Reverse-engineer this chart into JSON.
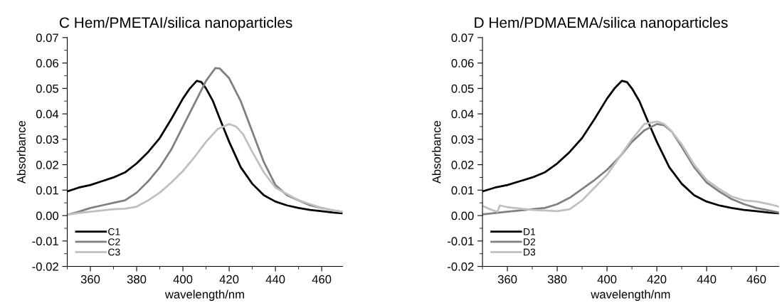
{
  "chart_data": [
    {
      "type": "line",
      "title": "C Hem/PMETAI/silica nanoparticles",
      "xlabel": "wavelength/nm",
      "ylabel": "Absorbance",
      "xlim": [
        350,
        469
      ],
      "xticks": [
        360,
        380,
        400,
        420,
        440,
        460
      ],
      "ylim": [
        -0.02,
        0.07
      ],
      "yticks": [
        {
          "value": -0.02,
          "label": "-0.02"
        },
        {
          "value": -0.01,
          "label": "-0.01"
        },
        {
          "value": 0,
          "label": "0.00"
        },
        {
          "value": 0.01,
          "label": "0.01"
        },
        {
          "value": 0.02,
          "label": "0.02"
        },
        {
          "value": 0.03,
          "label": "0.03"
        },
        {
          "value": 0.04,
          "label": "0.04"
        },
        {
          "value": 0.05,
          "label": "0.05"
        },
        {
          "value": 0.06,
          "label": "0.06"
        },
        {
          "value": 0.07,
          "label": "0.07"
        }
      ],
      "legend": "bottom left",
      "grid": false,
      "series": [
        {
          "name": "C1",
          "color": "#000000",
          "x": [
            350,
            355,
            360,
            365,
            370,
            375,
            380,
            385,
            390,
            395,
            400,
            403,
            406,
            408,
            410,
            413,
            416,
            420,
            425,
            430,
            435,
            440,
            445,
            450,
            455,
            460,
            465,
            469
          ],
          "values": [
            0.0095,
            0.011,
            0.012,
            0.0135,
            0.015,
            0.017,
            0.0205,
            0.025,
            0.0305,
            0.038,
            0.046,
            0.05,
            0.053,
            0.0525,
            0.05,
            0.045,
            0.038,
            0.029,
            0.019,
            0.0125,
            0.008,
            0.0055,
            0.004,
            0.003,
            0.0022,
            0.0017,
            0.0012,
            0.0009
          ]
        },
        {
          "name": "C2",
          "color": "#808080",
          "x": [
            350,
            355,
            360,
            365,
            370,
            375,
            380,
            385,
            390,
            395,
            400,
            405,
            410,
            414,
            416,
            420,
            425,
            430,
            435,
            440,
            445,
            450,
            455,
            460,
            465,
            469
          ],
          "values": [
            0.0003,
            0.0015,
            0.003,
            0.004,
            0.005,
            0.006,
            0.009,
            0.0135,
            0.019,
            0.026,
            0.035,
            0.044,
            0.053,
            0.058,
            0.0578,
            0.054,
            0.045,
            0.033,
            0.021,
            0.012,
            0.008,
            0.006,
            0.004,
            0.003,
            0.002,
            0.0015
          ]
        },
        {
          "name": "C3",
          "color": "#c0c0c0",
          "x": [
            350,
            355,
            360,
            365,
            370,
            375,
            380,
            385,
            390,
            395,
            400,
            405,
            410,
            415,
            420,
            423,
            426,
            430,
            435,
            440,
            445,
            450,
            455,
            460,
            465,
            469
          ],
          "values": [
            0.0003,
            0.001,
            0.0015,
            0.002,
            0.0025,
            0.0027,
            0.0035,
            0.006,
            0.009,
            0.013,
            0.0175,
            0.023,
            0.029,
            0.034,
            0.036,
            0.035,
            0.032,
            0.025,
            0.017,
            0.011,
            0.0085,
            0.006,
            0.0045,
            0.003,
            0.002,
            0.0015
          ]
        }
      ]
    },
    {
      "type": "line",
      "title": "D Hem/PDMAEMA/silica nanoparticles",
      "xlabel": "wavelength/nm",
      "ylabel": "Absorbance",
      "xlim": [
        350,
        469
      ],
      "xticks": [
        360,
        380,
        400,
        420,
        440,
        460
      ],
      "ylim": [
        -0.02,
        0.07
      ],
      "yticks": [
        {
          "value": -0.02,
          "label": "-0.02"
        },
        {
          "value": -0.01,
          "label": "-0.01"
        },
        {
          "value": 0,
          "label": "0.00"
        },
        {
          "value": 0.01,
          "label": "0.01"
        },
        {
          "value": 0.02,
          "label": "0.02"
        },
        {
          "value": 0.03,
          "label": "0.03"
        },
        {
          "value": 0.04,
          "label": "0.04"
        },
        {
          "value": 0.05,
          "label": "0.05"
        },
        {
          "value": 0.06,
          "label": "0.06"
        },
        {
          "value": 0.07,
          "label": "0.07"
        }
      ],
      "legend": "bottom left",
      "grid": false,
      "series": [
        {
          "name": "D1",
          "color": "#000000",
          "x": [
            350,
            355,
            360,
            365,
            370,
            375,
            380,
            385,
            390,
            395,
            400,
            403,
            406,
            408,
            410,
            413,
            416,
            420,
            425,
            430,
            435,
            440,
            445,
            450,
            455,
            460,
            465,
            469
          ],
          "values": [
            0.0095,
            0.011,
            0.012,
            0.0135,
            0.015,
            0.017,
            0.0205,
            0.025,
            0.0305,
            0.038,
            0.046,
            0.05,
            0.053,
            0.0525,
            0.05,
            0.045,
            0.038,
            0.029,
            0.019,
            0.0125,
            0.008,
            0.0055,
            0.004,
            0.003,
            0.0022,
            0.0017,
            0.0012,
            0.0009
          ]
        },
        {
          "name": "D2",
          "color": "#808080",
          "x": [
            350,
            360,
            370,
            375,
            380,
            385,
            390,
            395,
            400,
            405,
            410,
            415,
            420,
            423,
            426,
            430,
            435,
            440,
            445,
            450,
            455,
            460,
            465,
            469
          ],
          "values": [
            0.0005,
            0.0015,
            0.0025,
            0.003,
            0.0045,
            0.007,
            0.0105,
            0.014,
            0.018,
            0.023,
            0.029,
            0.0335,
            0.036,
            0.0355,
            0.033,
            0.027,
            0.019,
            0.013,
            0.0095,
            0.0065,
            0.0045,
            0.003,
            0.002,
            0.0012
          ]
        },
        {
          "name": "D3",
          "color": "#c0c0c0",
          "x": [
            350,
            353,
            356,
            357,
            360,
            365,
            370,
            375,
            380,
            385,
            390,
            395,
            400,
            405,
            410,
            415,
            420,
            423,
            426,
            430,
            435,
            440,
            445,
            450,
            455,
            460,
            465,
            469
          ],
          "values": [
            0.0038,
            0.0025,
            0.0015,
            0.004,
            0.0033,
            0.0028,
            0.0022,
            0.002,
            0.0017,
            0.0025,
            0.006,
            0.011,
            0.016,
            0.023,
            0.03,
            0.036,
            0.037,
            0.036,
            0.033,
            0.028,
            0.02,
            0.014,
            0.0105,
            0.0075,
            0.006,
            0.0055,
            0.0045,
            0.0035
          ]
        }
      ]
    }
  ]
}
